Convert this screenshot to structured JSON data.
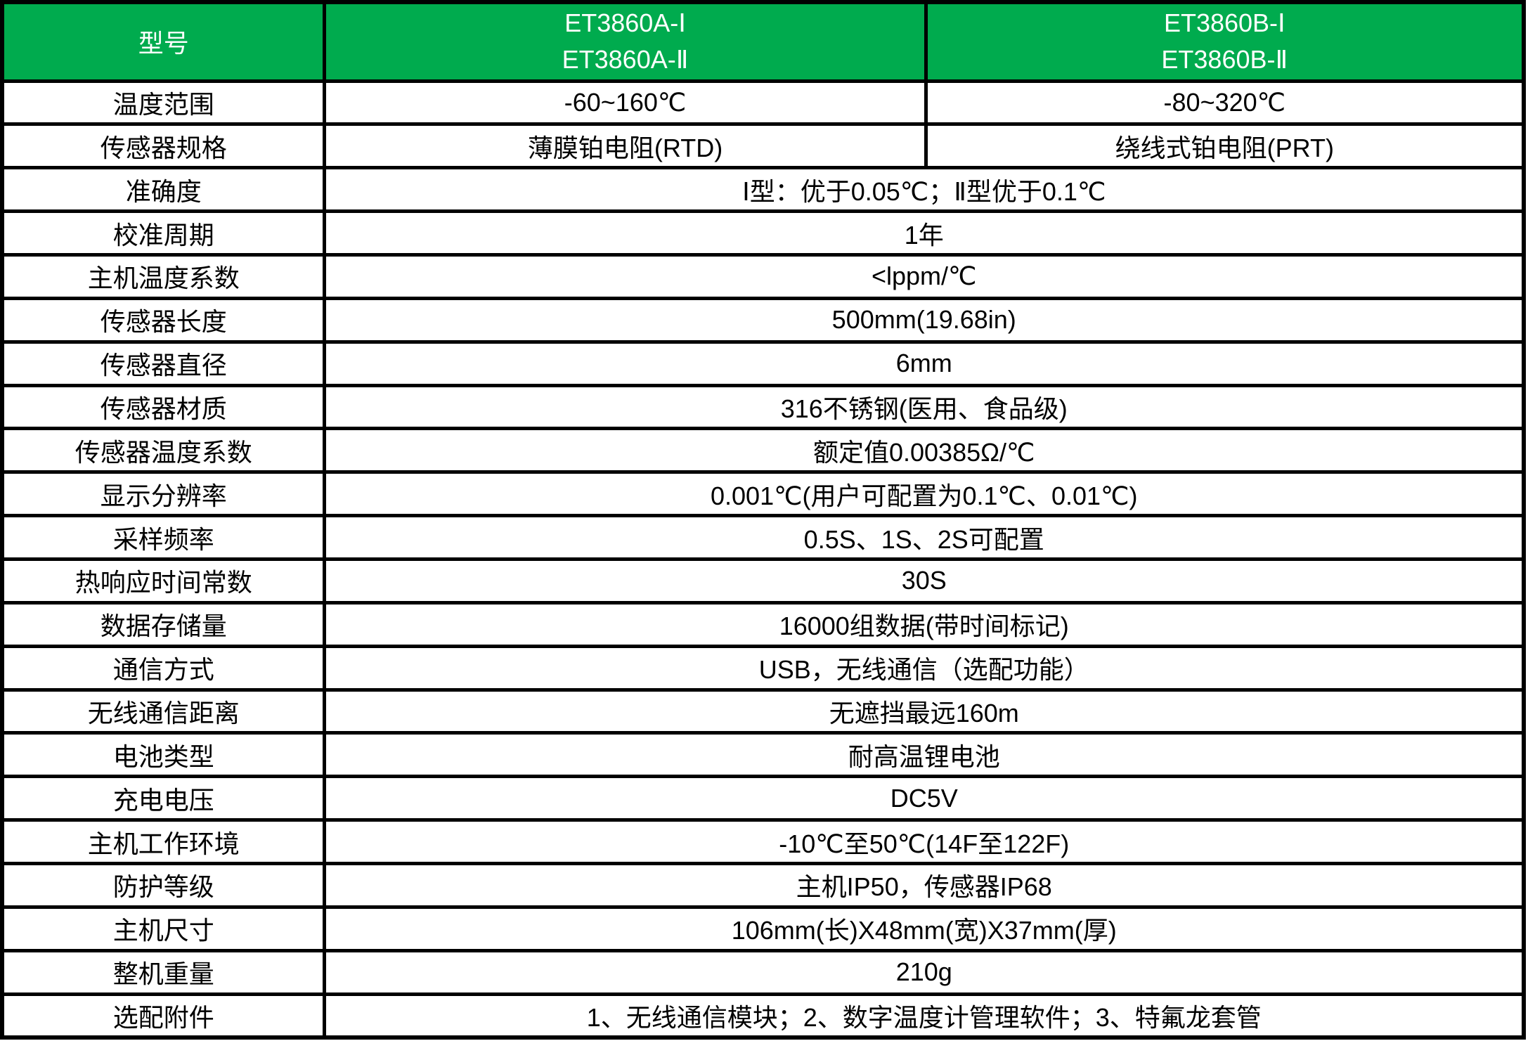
{
  "table": {
    "colors": {
      "header_bg": "#00AB4E",
      "header_text": "#FFFFFF",
      "border": "#000000",
      "body_text": "#000000",
      "bg": "#FFFFFF"
    },
    "header": {
      "col1": "型号",
      "col2_lines": [
        "ET3860A-Ⅰ",
        "ET3860A-Ⅱ"
      ],
      "col3_lines": [
        "ET3860B-Ⅰ",
        "ET3860B-Ⅱ"
      ]
    },
    "split_rows": [
      {
        "label": "温度范围",
        "col2": "-60~160℃",
        "col3": "-80~320℃"
      },
      {
        "label": "传感器规格",
        "col2": "薄膜铂电阻(RTD)",
        "col3": "绕线式铂电阻(PRT)"
      }
    ],
    "merged_rows": [
      {
        "label": "准确度",
        "value": "Ⅰ型：优于0.05℃；Ⅱ型优于0.1℃"
      },
      {
        "label": "校准周期",
        "value": "1年"
      },
      {
        "label": "主机温度系数",
        "value": "<lppm/℃"
      },
      {
        "label": "传感器长度",
        "value": "500mm(19.68in)"
      },
      {
        "label": "传感器直径",
        "value": "6mm"
      },
      {
        "label": "传感器材质",
        "value": "316不锈钢(医用、食品级)"
      },
      {
        "label": "传感器温度系数",
        "value": "额定值0.00385Ω/℃"
      },
      {
        "label": "显示分辨率",
        "value": "0.001℃(用户可配置为0.1℃、0.01℃)"
      },
      {
        "label": "采样频率",
        "value": "0.5S、1S、2S可配置"
      },
      {
        "label": "热响应时间常数",
        "value": "30S"
      },
      {
        "label": "数据存储量",
        "value": "16000组数据(带时间标记)"
      },
      {
        "label": "通信方式",
        "value": "USB，无线通信（选配功能）"
      },
      {
        "label": "无线通信距离",
        "value": "无遮挡最远160m"
      },
      {
        "label": "电池类型",
        "value": "耐高温锂电池"
      },
      {
        "label": "充电电压",
        "value": "DC5V"
      },
      {
        "label": "主机工作环境",
        "value": "-10℃至50℃(14F至122F)"
      },
      {
        "label": "防护等级",
        "value": "主机IP50，传感器IP68"
      },
      {
        "label": "主机尺寸",
        "value": "106mm(长)X48mm(宽)X37mm(厚)"
      },
      {
        "label": "整机重量",
        "value": "210g"
      },
      {
        "label": "选配附件",
        "value": "1、无线通信模块；2、数字温度计管理软件；3、特氟龙套管"
      }
    ]
  }
}
